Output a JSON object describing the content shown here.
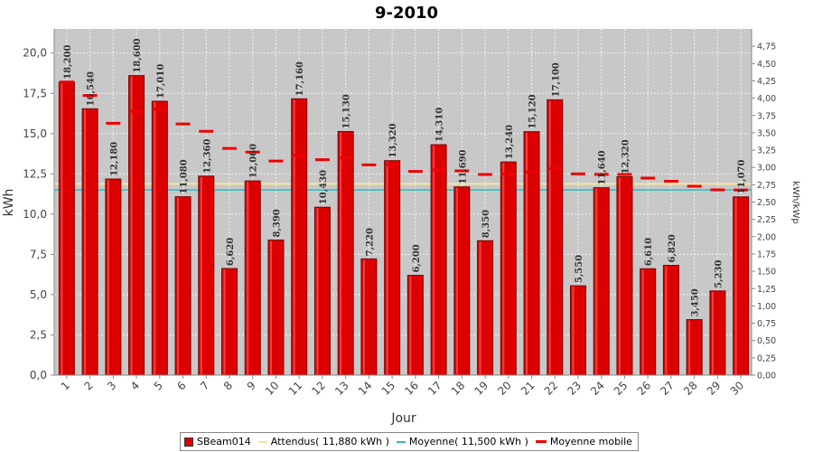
{
  "chart_data": {
    "type": "bar",
    "title": "9-2010",
    "xlabel": "Jour",
    "ylabel": "kWh",
    "y2label": "kWh/kWp",
    "ylim": [
      0,
      21.5
    ],
    "y2lim": [
      0,
      5.0
    ],
    "yticks": [
      "0,0",
      "2,5",
      "5,0",
      "7,5",
      "10,0",
      "12,5",
      "15,0",
      "17,5",
      "20,0"
    ],
    "y2ticks": [
      "0,00",
      "0,25",
      "0,50",
      "0,75",
      "1,00",
      "1,25",
      "1,50",
      "1,75",
      "2,00",
      "2,25",
      "2,50",
      "2,75",
      "3,00",
      "3,25",
      "3,50",
      "3,75",
      "4,00",
      "4,25",
      "4,50",
      "4,75"
    ],
    "grid": true,
    "categories": [
      "1",
      "2",
      "3",
      "4",
      "5",
      "6",
      "7",
      "8",
      "9",
      "10",
      "11",
      "12",
      "13",
      "14",
      "15",
      "16",
      "17",
      "18",
      "19",
      "20",
      "21",
      "22",
      "23",
      "24",
      "25",
      "26",
      "27",
      "28",
      "29",
      "30"
    ],
    "series": [
      {
        "name": "SBeam014",
        "type": "bar",
        "color": "#dd0000",
        "values": [
          18.2,
          16.54,
          12.18,
          18.6,
          17.01,
          11.08,
          12.36,
          6.62,
          12.06,
          8.39,
          17.16,
          10.43,
          15.13,
          7.22,
          13.32,
          6.2,
          14.31,
          11.69,
          8.35,
          13.24,
          15.12,
          17.1,
          5.55,
          11.64,
          12.32,
          6.61,
          6.82,
          3.45,
          5.23,
          11.07
        ],
        "labels": [
          "18,200",
          "16,540",
          "12,180",
          "18,600",
          "17,010",
          "11,080",
          "12,360",
          "6,620",
          "12,060",
          "8,390",
          "17,160",
          "10,430",
          "15,130",
          "7,220",
          "13,320",
          "6,200",
          "14,310",
          "11,690",
          "8,350",
          "13,240",
          "15,120",
          "17,100",
          "5,550",
          "11,640",
          "12,320",
          "6,610",
          "6,820",
          "3,450",
          "5,230",
          "11,070"
        ]
      },
      {
        "name": "Attendus( 11,880 kWh )",
        "type": "hline",
        "color": "#f5e6a0",
        "value": 11.88
      },
      {
        "name": "Moyenne( 11,500 kWh )",
        "type": "hline",
        "color": "#33bbbb",
        "value": 11.5
      },
      {
        "name": "Moyenne mobile",
        "type": "step",
        "color": "#ee0000",
        "values": [
          18.2,
          17.37,
          15.64,
          16.38,
          16.51,
          15.6,
          15.14,
          14.08,
          13.85,
          13.3,
          13.65,
          13.38,
          13.51,
          13.06,
          13.08,
          12.65,
          12.75,
          12.69,
          12.46,
          12.5,
          12.62,
          12.82,
          12.5,
          12.47,
          12.46,
          12.24,
          12.04,
          11.73,
          11.51,
          11.5
        ]
      }
    ],
    "legend_position": "bottom"
  }
}
